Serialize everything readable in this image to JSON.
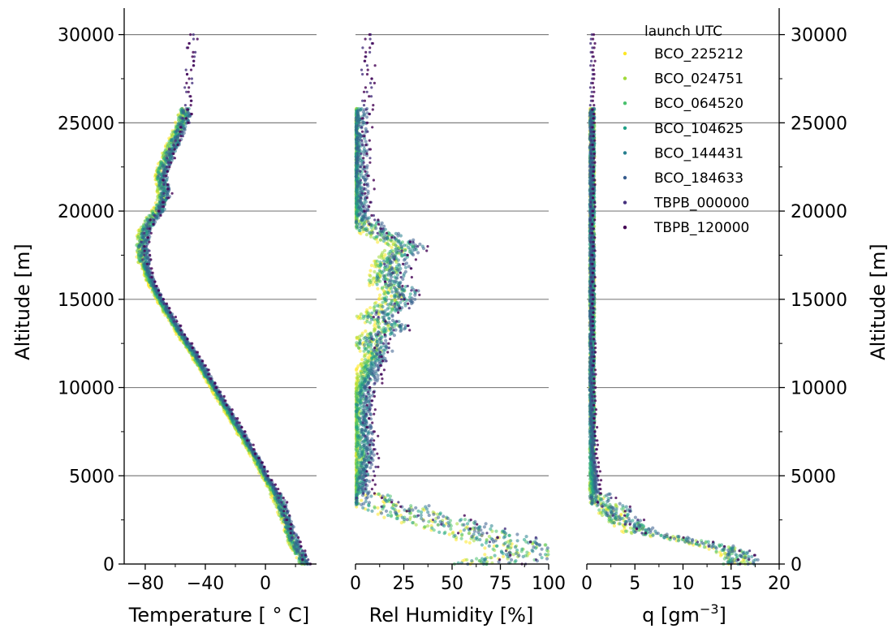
{
  "chart_data": [
    {
      "type": "scatter",
      "panel": "temperature",
      "xlabel": "Temperature [$^\\circ$C]",
      "xlabel_display": "Temperature [ ° C]",
      "ylabel": "Altitude [m]",
      "xlim": [
        -94,
        34
      ],
      "ylim": [
        0,
        31500
      ],
      "xticks": [
        -80,
        -40,
        0
      ],
      "xtick_labels": [
        "−80",
        "−40",
        "0"
      ],
      "yticks": [
        0,
        5000,
        10000,
        15000,
        20000,
        25000,
        30000
      ],
      "ytick_labels": [
        "0",
        "5000",
        "10000",
        "15000",
        "20000",
        "25000",
        "30000"
      ],
      "grid": "horizontal",
      "profile": {
        "altitude": [
          0,
          500,
          1000,
          1500,
          2000,
          2500,
          3000,
          3500,
          4000,
          5000,
          6000,
          7000,
          8000,
          9000,
          10000,
          11000,
          12000,
          13000,
          14000,
          15000,
          16000,
          17000,
          17500,
          18000,
          18500,
          19000,
          19500,
          20000,
          20500,
          21000,
          21500,
          22000,
          23000,
          24000,
          25000,
          26000,
          27000,
          28000,
          29000,
          30000
        ],
        "value": [
          26,
          24,
          20,
          18,
          16,
          14,
          12,
          10,
          7,
          0,
          -6,
          -13,
          -20,
          -27,
          -34,
          -41,
          -48,
          -56,
          -63,
          -70,
          -76,
          -80,
          -81,
          -82,
          -81,
          -79,
          -76,
          -71,
          -68,
          -67,
          -68,
          -69,
          -65,
          -60,
          -55,
          -52,
          -53,
          -52,
          -51,
          -50
        ]
      }
    },
    {
      "type": "scatter",
      "panel": "relative_humidity",
      "xlabel": "Rel Humidity [%]",
      "xlim": [
        0,
        100
      ],
      "ylim": [
        0,
        31500
      ],
      "xticks": [
        0,
        25,
        50,
        75,
        100
      ],
      "xtick_labels": [
        "0",
        "25",
        "50",
        "75",
        "100"
      ],
      "grid": "horizontal",
      "profile": {
        "altitude": [
          0,
          300,
          600,
          900,
          1200,
          1500,
          1800,
          2100,
          2400,
          2700,
          3000,
          3300,
          3600,
          4000,
          5000,
          6000,
          7000,
          8000,
          9000,
          10000,
          11000,
          12000,
          12500,
          13000,
          13500,
          14000,
          14500,
          15000,
          15500,
          16000,
          16500,
          17000,
          17500,
          18000,
          18500,
          19000,
          19500,
          20000,
          21000,
          22000,
          23000,
          24000,
          25000,
          26000,
          27000,
          28000,
          29000,
          30000
        ],
        "value": [
          68,
          82,
          92,
          90,
          80,
          72,
          62,
          55,
          45,
          35,
          25,
          18,
          3,
          2,
          3,
          5,
          4,
          3,
          3,
          5,
          8,
          12,
          8,
          12,
          20,
          10,
          18,
          22,
          25,
          15,
          20,
          18,
          22,
          28,
          18,
          8,
          4,
          2,
          2,
          1,
          1,
          1,
          1,
          1,
          2,
          2,
          2,
          2
        ]
      }
    },
    {
      "type": "scatter",
      "panel": "specific_humidity",
      "xlabel": "q [gm$^{-3}$]",
      "xlabel_display": "q [gm",
      "xlabel_superscript": "−3",
      "xlabel_suffix": "]",
      "ylabel_right": "Altitude [m]",
      "xlim": [
        0,
        20
      ],
      "ylim": [
        0,
        31500
      ],
      "xticks": [
        0,
        5,
        10,
        15,
        20
      ],
      "xtick_labels": [
        "0",
        "5",
        "10",
        "15",
        "20"
      ],
      "grid": "horizontal",
      "profile": {
        "altitude": [
          0,
          300,
          600,
          900,
          1200,
          1500,
          1800,
          2100,
          2400,
          2700,
          3000,
          3300,
          3600,
          4000,
          5000,
          6000,
          7000,
          8000,
          10000,
          12000,
          15000,
          20000,
          25000,
          30000
        ],
        "value": [
          16,
          16,
          15.5,
          14.5,
          12,
          9,
          6,
          5,
          4,
          3.5,
          3,
          2.5,
          1,
          0.8,
          0.6,
          0.4,
          0.3,
          0.2,
          0.1,
          0.05,
          0.02,
          0.01,
          0.01,
          0.01
        ]
      }
    }
  ],
  "legend": {
    "title": "launch UTC",
    "placement": "top-right",
    "entries": [
      {
        "name": "BCO_225212",
        "color": "#fde725"
      },
      {
        "name": "BCO_024751",
        "color": "#a0da39"
      },
      {
        "name": "BCO_064520",
        "color": "#4ac16d"
      },
      {
        "name": "BCO_104625",
        "color": "#1fa187"
      },
      {
        "name": "BCO_144431",
        "color": "#277f8e"
      },
      {
        "name": "BCO_184633",
        "color": "#365c8d"
      },
      {
        "name": "TBPB_000000",
        "color": "#46327e"
      },
      {
        "name": "TBPB_120000",
        "color": "#440154"
      }
    ]
  }
}
